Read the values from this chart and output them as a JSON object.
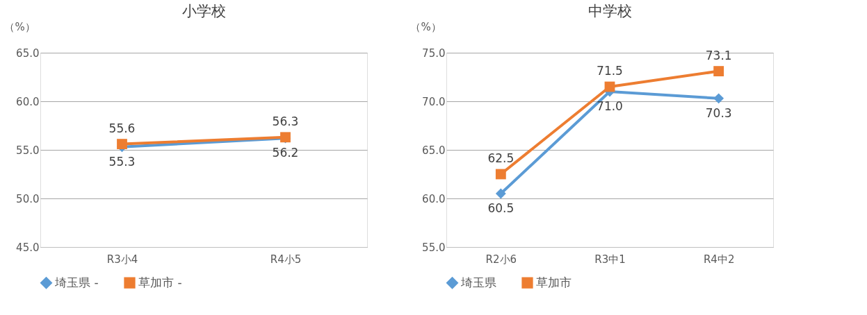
{
  "chart_data": [
    {
      "type": "line",
      "title": "小学校",
      "ylabel": "（%）",
      "categories": [
        "R3小4",
        "R4小5"
      ],
      "series": [
        {
          "name": "埼玉県 -",
          "color": "#5b9bd5",
          "marker": "diamond",
          "values": [
            55.3,
            56.2
          ],
          "value_labels": [
            "55.3",
            "56.2"
          ]
        },
        {
          "name": "草加市 -",
          "color": "#ed7d31",
          "marker": "square",
          "values": [
            55.6,
            56.3
          ],
          "value_labels": [
            "55.6",
            "56.3"
          ]
        }
      ],
      "ylim": [
        45,
        65
      ],
      "yticks": [
        {
          "value": 45,
          "label": "45.0"
        },
        {
          "value": 50,
          "label": "50.0"
        },
        {
          "value": 55,
          "label": "55.0"
        },
        {
          "value": 60,
          "label": "60.0"
        },
        {
          "value": 65,
          "label": "65.0"
        }
      ],
      "grid": "y",
      "legend": "bottom",
      "line_style": "solid"
    },
    {
      "type": "line",
      "title": "中学校",
      "ylabel": "（%）",
      "categories": [
        "R2小6",
        "R3中1",
        "R4中2"
      ],
      "series": [
        {
          "name": "埼玉県",
          "color": "#5b9bd5",
          "marker": "diamond",
          "values": [
            60.5,
            71.0,
            70.3
          ],
          "value_labels": [
            "60.5",
            "71.0",
            "70.3"
          ]
        },
        {
          "name": "草加市",
          "color": "#ed7d31",
          "marker": "square",
          "values": [
            62.5,
            71.5,
            73.1
          ],
          "value_labels": [
            "62.5",
            "71.5",
            "73.1"
          ]
        }
      ],
      "ylim": [
        55,
        75
      ],
      "yticks": [
        {
          "value": 55,
          "label": "55.0"
        },
        {
          "value": 60,
          "label": "60.0"
        },
        {
          "value": 65,
          "label": "65.0"
        },
        {
          "value": 70,
          "label": "70.0"
        },
        {
          "value": 75,
          "label": "75.0"
        }
      ],
      "grid": "y",
      "legend": "bottom",
      "line_style": "solid"
    }
  ]
}
